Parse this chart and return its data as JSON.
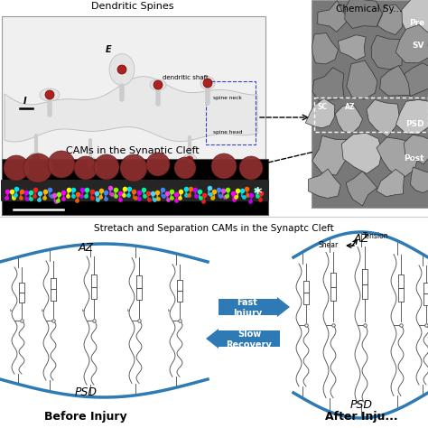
{
  "panel_top_left_title": "Dendritic Spines",
  "panel_top_right_title": "Chemical Sy...",
  "panel_top_right_labels": [
    "Pre",
    "SV",
    "SC",
    "AZ",
    "PSD",
    "Post"
  ],
  "panel_mid_title": "CAMs in the Synaptic Cleft",
  "panel_bottom_title": "Stretach and Separation CAMs in the Synaptc Cleft",
  "blue_curve_color": "#2e7ab5",
  "bg_color": "#ffffff",
  "figsize": [
    4.74,
    4.74
  ],
  "dpi": 100
}
